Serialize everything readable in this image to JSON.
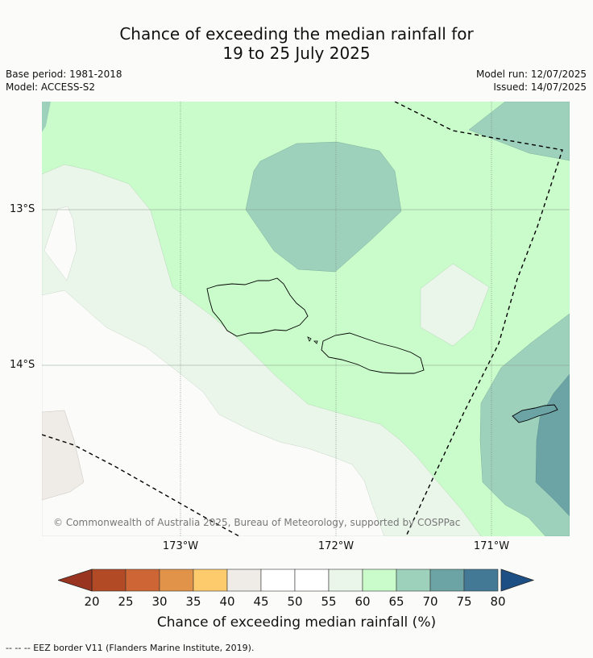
{
  "title": {
    "line1": "Chance of exceeding the median rainfall for",
    "line2": "19 to 25 July 2025"
  },
  "meta": {
    "base_period": "Base period: 1981-2018",
    "model": "Model: ACCESS-S2",
    "model_run": "Model run: 12/07/2025",
    "issued": "Issued: 14/07/2025"
  },
  "axes": {
    "lat_labels": [
      "13°S",
      "14°S"
    ],
    "lon_labels": [
      "173°W",
      "172°W",
      "171°W"
    ]
  },
  "copyright": "© Commonwealth of Australia 2025, Bureau of Meteorology, supported by COSPPac",
  "colorbar": {
    "ticks": [
      "20",
      "25",
      "30",
      "35",
      "40",
      "45",
      "50",
      "55",
      "60",
      "65",
      "70",
      "75",
      "80"
    ],
    "colors": [
      "#b24a25",
      "#cd6534",
      "#e19449",
      "#fdcb6b",
      "#efebe6",
      "#ffffff",
      "#ffffff",
      "#eaf6ea",
      "#c9fcca",
      "#9dd1bb",
      "#6ca3a5",
      "#437995"
    ],
    "under_color": "#993420",
    "over_color": "#1d4f85",
    "label": "Chance of exceeding median rainfall (%)"
  },
  "footnote": "--  --  -- EEZ border V11 (Flanders Marine Institute, 2019)."
}
